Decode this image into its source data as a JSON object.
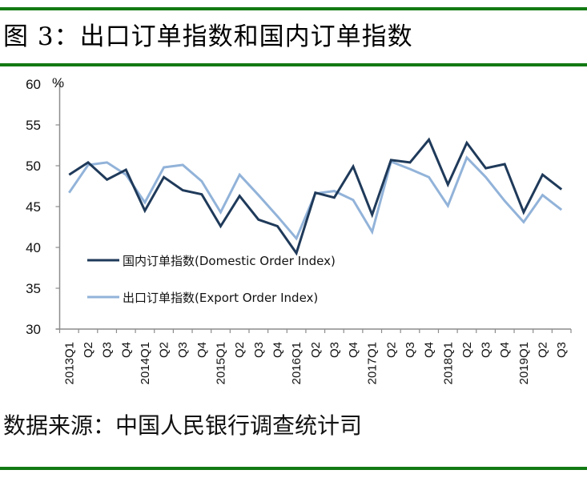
{
  "header": {
    "title": "图 3：出口订单指数和国内订单指数"
  },
  "footer": {
    "source": "数据来源：中国人民银行调查统计司"
  },
  "colors": {
    "rule": "#127a13",
    "domestic": "#1f3a5a",
    "export": "#92b3d9",
    "axis": "#8c8c8c"
  },
  "chart_data": {
    "type": "line",
    "title": "图 3：出口订单指数和国内订单指数",
    "xlabel": "",
    "ylabel": "%",
    "ylim": [
      30,
      60
    ],
    "yticks": [
      30,
      35,
      40,
      45,
      50,
      55,
      60
    ],
    "grid": false,
    "legend_position": "inside lower-left",
    "categories": [
      "2013Q1",
      "Q2",
      "Q3",
      "Q4",
      "2014Q1",
      "Q2",
      "Q3",
      "Q4",
      "2015Q1",
      "Q2",
      "Q3",
      "Q4",
      "2016Q1",
      "Q2",
      "Q3",
      "Q4",
      "2017Q1",
      "Q2",
      "Q3",
      "Q4",
      "2018Q1",
      "Q2",
      "Q3",
      "Q4",
      "2019Q1",
      "Q2",
      "Q3"
    ],
    "series": [
      {
        "name": "国内订单指数(Domestic Order Index)",
        "color": "#1f3a5a",
        "values": [
          48.9,
          50.4,
          48.3,
          49.5,
          44.5,
          48.6,
          47.0,
          46.5,
          42.6,
          46.3,
          43.4,
          42.6,
          39.3,
          46.7,
          46.1,
          49.9,
          44.0,
          50.7,
          50.4,
          53.2,
          47.7,
          52.8,
          49.7,
          50.2,
          44.3,
          48.9,
          47.1
        ]
      },
      {
        "name": "出口订单指数(Export Order Index)",
        "color": "#92b3d9",
        "values": [
          46.7,
          50.1,
          50.4,
          48.9,
          45.5,
          49.8,
          50.1,
          48.1,
          44.3,
          48.9,
          46.4,
          43.8,
          41.1,
          46.6,
          46.9,
          45.8,
          41.9,
          50.5,
          49.6,
          48.6,
          45.1,
          51.0,
          48.6,
          45.7,
          43.1,
          46.4,
          44.6
        ]
      }
    ]
  }
}
